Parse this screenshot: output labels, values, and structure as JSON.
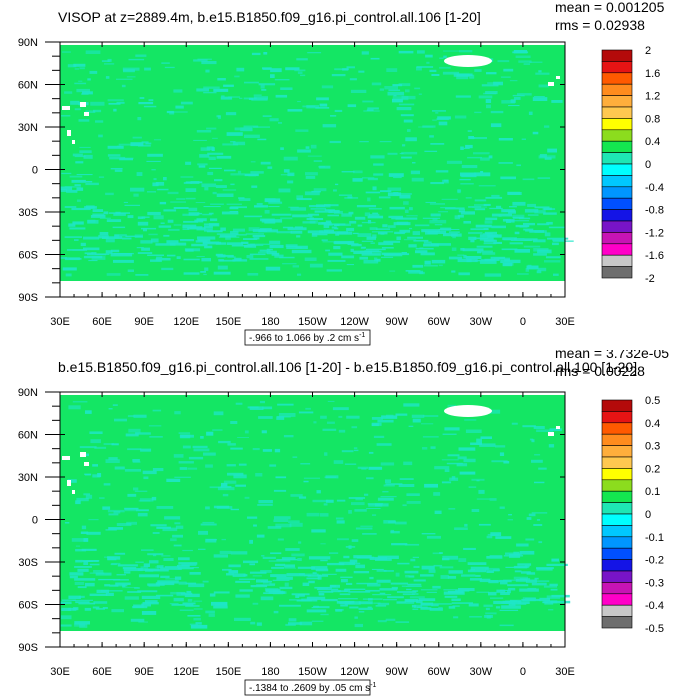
{
  "chart_data": [
    {
      "type": "heatmap",
      "title": "VISOP at z=2889.4m, b.e15.B1850.f09_g16.pi_control.all.106 [1-20]",
      "stats": {
        "mean": "mean = 0.001205",
        "rms": "rms = 0.02938"
      },
      "x_ticks": [
        "30E",
        "60E",
        "90E",
        "120E",
        "150E",
        "180",
        "150W",
        "120W",
        "90W",
        "60W",
        "30W",
        "0",
        "30E"
      ],
      "y_ticks": [
        "90N",
        "60N",
        "30N",
        "0",
        "30S",
        "60S",
        "90S"
      ],
      "colorbar_labels": [
        "2",
        "1.6",
        "1.2",
        "0.8",
        "0.4",
        "0",
        "-0.4",
        "-0.8",
        "-1.2",
        "-1.6",
        "-2"
      ],
      "range_label": "-.966 to 1.066 by .2 cm s",
      "range_superscript": "-1",
      "dominant_value": 0
    },
    {
      "type": "heatmap",
      "title": "b.e15.B1850.f09_g16.pi_control.all.106 [1-20] - b.e15.B1850.f09_g16.pi_control.all.100 [1-20]",
      "stats": {
        "mean": "mean = 3.732e-05",
        "rms": "rms = 0.00228"
      },
      "x_ticks": [
        "30E",
        "60E",
        "90E",
        "120E",
        "150E",
        "180",
        "150W",
        "120W",
        "90W",
        "60W",
        "30W",
        "0",
        "30E"
      ],
      "y_ticks": [
        "90N",
        "60N",
        "30N",
        "0",
        "30S",
        "60S",
        "90S"
      ],
      "colorbar_labels": [
        "0.5",
        "0.4",
        "0.3",
        "0.2",
        "0.1",
        "0",
        "-0.1",
        "-0.2",
        "-0.3",
        "-0.4",
        "-0.5"
      ],
      "range_label": "-.1384 to .2609 by .05 cm s",
      "range_superscript": "-1",
      "dominant_value": 0
    }
  ],
  "colors": {
    "palette_top_to_bottom": [
      "#b40a0a",
      "#e61414",
      "#ff5a00",
      "#ff8c1e",
      "#ffae3c",
      "#ffc850",
      "#ffff00",
      "#8cdc1e",
      "#14e650",
      "#1ee6b4",
      "#00ffff",
      "#00c8ff",
      "#0096ff",
      "#0050ff",
      "#1414e6",
      "#7814c8",
      "#c814b4",
      "#ff00c8",
      "#c8c8c8",
      "#6e6e6e"
    ],
    "ocean_fill": "#14e664",
    "ocean_speckle": "#1ee6c8",
    "land": "#ffffff"
  }
}
